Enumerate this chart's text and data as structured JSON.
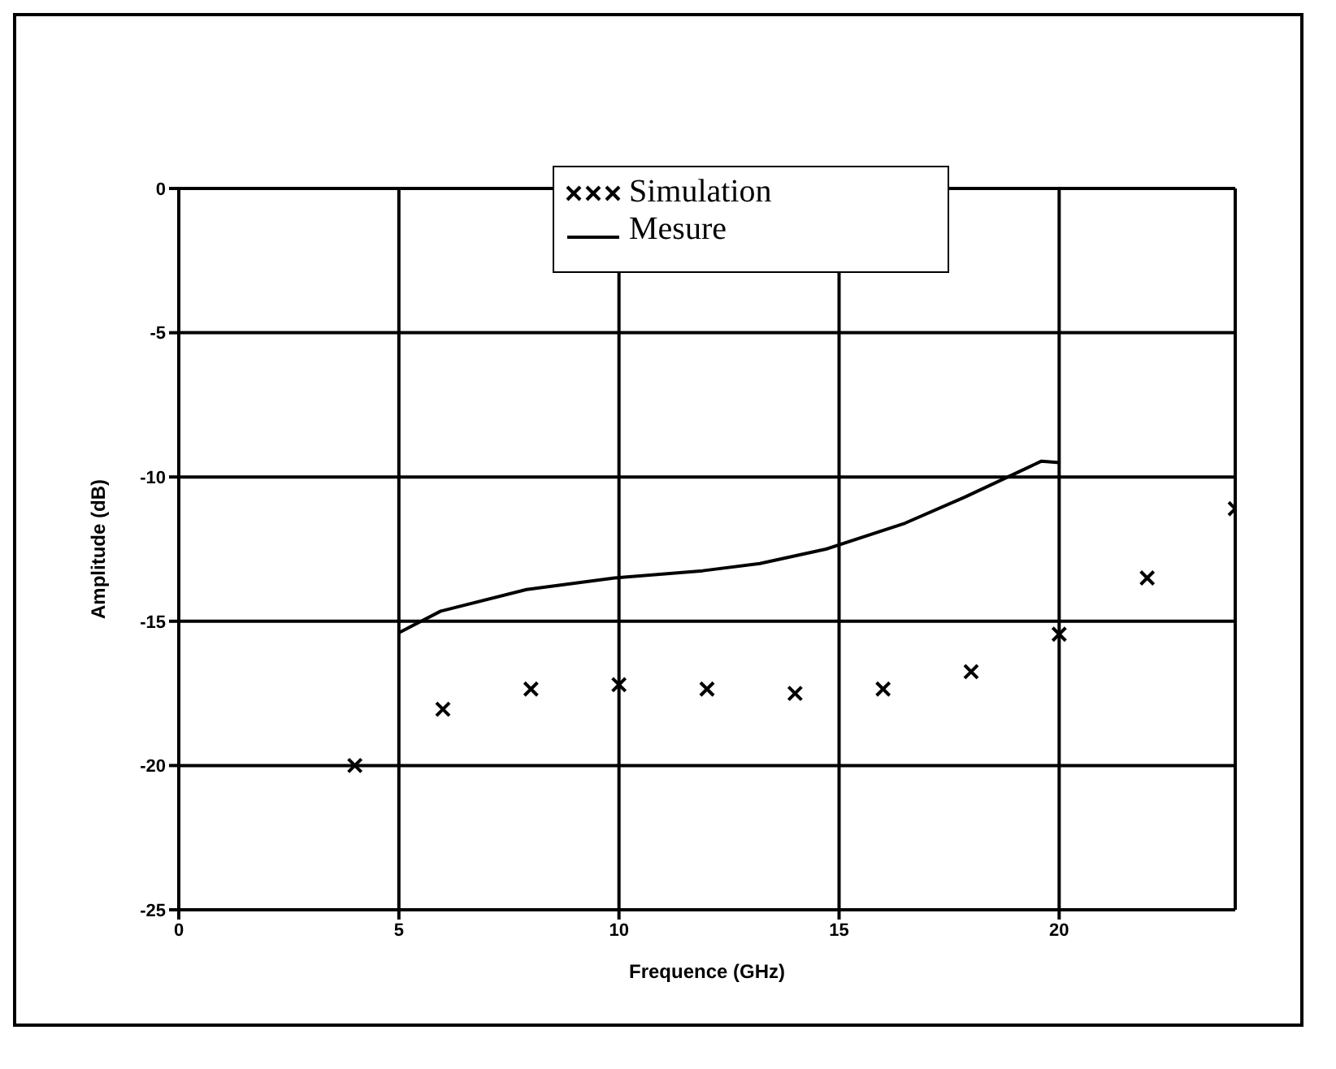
{
  "chart_data": {
    "type": "scatter",
    "xlabel": "Frequence (GHz)",
    "ylabel": "Amplitude (dB)",
    "xlim": [
      0,
      24
    ],
    "xticks": [
      0,
      5,
      10,
      15,
      20
    ],
    "ylim": [
      -25,
      0
    ],
    "yticks": [
      0,
      -5,
      -10,
      -15,
      -20,
      -25
    ],
    "grid": true,
    "legend": "top",
    "series": [
      {
        "name": "Simulation",
        "marker": "cross",
        "color": "#000000",
        "x": [
          4,
          6,
          8,
          10,
          12,
          14,
          16,
          18,
          20,
          22,
          24
        ],
        "values": [
          -20,
          -18.05,
          -17.35,
          -17.2,
          -17.35,
          -17.5,
          -17.35,
          -16.75,
          -15.45,
          -13.5,
          -11.1
        ]
      },
      {
        "name": "Mesure",
        "type": "line",
        "marker": "none",
        "line_style": "solid",
        "color": "#000000",
        "x": [
          5,
          5.95,
          7.9,
          9.9,
          11.9,
          13.2,
          14.7,
          16.5,
          17.85,
          19.6,
          20
        ],
        "values": [
          -15.4,
          -14.65,
          -13.9,
          -13.5,
          -13.25,
          -13.0,
          -12.5,
          -11.6,
          -10.7,
          -9.45,
          -9.5
        ]
      }
    ]
  }
}
